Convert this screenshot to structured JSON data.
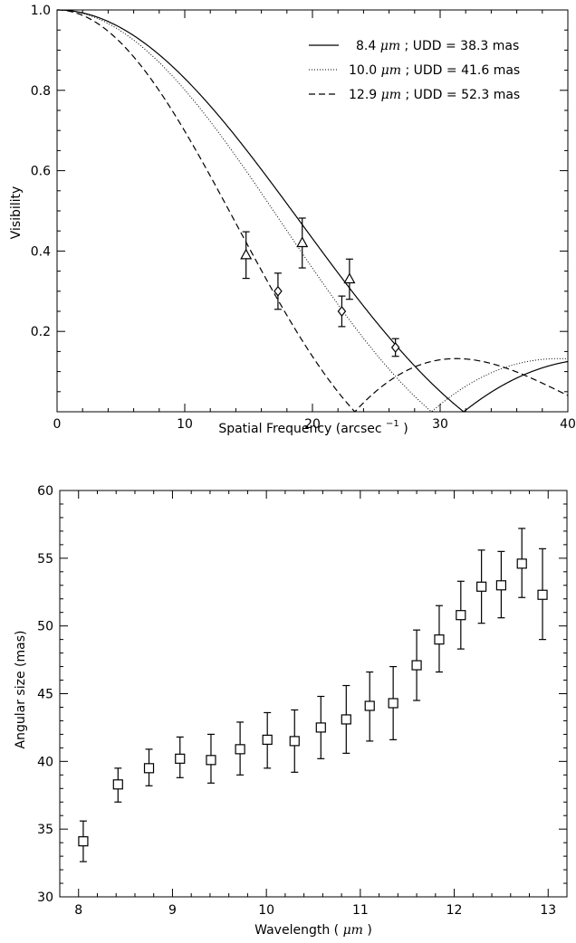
{
  "chart_data": [
    {
      "type": "line",
      "xlabel": "Spatial Frequency (arcsec",
      "xlabel_superscript": "−1",
      "xlabel_suffix": ")",
      "ylabel": "Visibility",
      "xlim": [
        0,
        40
      ],
      "ylim": [
        0,
        1.0
      ],
      "xticks": [
        0,
        10,
        20,
        30,
        40
      ],
      "yticks": [
        0.2,
        0.4,
        0.6,
        0.8,
        1.0
      ],
      "xtick_labels": [
        "0",
        "10",
        "20",
        "30",
        "40"
      ],
      "ytick_labels": [
        "0.2",
        "0.4",
        "0.6",
        "0.8",
        "1.0"
      ],
      "legend_position": "top-right",
      "series": [
        {
          "name": "8.4 μm ; UDD = 38.3 mas",
          "wavelength_label": "8.4",
          "udd_label": "38.3",
          "style": "solid",
          "udd_mas": 38.3
        },
        {
          "name": "10.0 μm ; UDD = 41.6 mas",
          "wavelength_label": "10.0",
          "udd_label": "41.6",
          "style": "dotted",
          "udd_mas": 41.6
        },
        {
          "name": "12.9 μm ; UDD = 52.3 mas",
          "wavelength_label": "12.9",
          "udd_label": "52.3",
          "style": "dashed",
          "udd_mas": 52.3
        }
      ],
      "points": [
        {
          "marker": "triangle",
          "x": 14.8,
          "y": 0.39,
          "err": 0.058
        },
        {
          "marker": "triangle",
          "x": 19.2,
          "y": 0.42,
          "err": 0.062
        },
        {
          "marker": "triangle",
          "x": 22.9,
          "y": 0.33,
          "err": 0.05
        },
        {
          "marker": "diamond",
          "x": 17.3,
          "y": 0.3,
          "err": 0.045
        },
        {
          "marker": "diamond",
          "x": 22.3,
          "y": 0.25,
          "err": 0.038
        },
        {
          "marker": "diamond",
          "x": 26.5,
          "y": 0.16,
          "err": 0.022
        }
      ]
    },
    {
      "type": "scatter",
      "xlabel": "Wavelength (",
      "xlabel_symbol": "μm",
      "xlabel_suffix": ")",
      "ylabel": "Angular size (mas)",
      "xlim": [
        7.8,
        13.2
      ],
      "ylim": [
        30,
        60
      ],
      "xticks": [
        8,
        9,
        10,
        11,
        12,
        13
      ],
      "yticks": [
        30,
        35,
        40,
        45,
        50,
        55,
        60
      ],
      "xtick_labels": [
        "8",
        "9",
        "10",
        "11",
        "12",
        "13"
      ],
      "ytick_labels": [
        "30",
        "35",
        "40",
        "45",
        "50",
        "55",
        "60"
      ],
      "marker": "square",
      "points": [
        {
          "x": 8.05,
          "y": 34.1,
          "lo": 32.6,
          "hi": 35.6
        },
        {
          "x": 8.42,
          "y": 38.3,
          "lo": 37.0,
          "hi": 39.5
        },
        {
          "x": 8.75,
          "y": 39.5,
          "lo": 38.2,
          "hi": 40.9
        },
        {
          "x": 9.08,
          "y": 40.2,
          "lo": 38.8,
          "hi": 41.8
        },
        {
          "x": 9.41,
          "y": 40.1,
          "lo": 38.4,
          "hi": 42.0
        },
        {
          "x": 9.72,
          "y": 40.9,
          "lo": 39.0,
          "hi": 42.9
        },
        {
          "x": 10.01,
          "y": 41.6,
          "lo": 39.5,
          "hi": 43.6
        },
        {
          "x": 10.3,
          "y": 41.5,
          "lo": 39.2,
          "hi": 43.8
        },
        {
          "x": 10.58,
          "y": 42.5,
          "lo": 40.2,
          "hi": 44.8
        },
        {
          "x": 10.85,
          "y": 43.1,
          "lo": 40.6,
          "hi": 45.6
        },
        {
          "x": 11.1,
          "y": 44.1,
          "lo": 41.5,
          "hi": 46.6
        },
        {
          "x": 11.35,
          "y": 44.3,
          "lo": 41.6,
          "hi": 47.0
        },
        {
          "x": 11.6,
          "y": 47.1,
          "lo": 44.5,
          "hi": 49.7
        },
        {
          "x": 11.84,
          "y": 49.0,
          "lo": 46.6,
          "hi": 51.5
        },
        {
          "x": 12.07,
          "y": 50.8,
          "lo": 48.3,
          "hi": 53.3
        },
        {
          "x": 12.29,
          "y": 52.9,
          "lo": 50.2,
          "hi": 55.6
        },
        {
          "x": 12.5,
          "y": 53.0,
          "lo": 50.6,
          "hi": 55.5
        },
        {
          "x": 12.72,
          "y": 54.6,
          "lo": 52.1,
          "hi": 57.2
        },
        {
          "x": 12.94,
          "y": 52.3,
          "lo": 49.0,
          "hi": 55.7
        }
      ]
    }
  ]
}
